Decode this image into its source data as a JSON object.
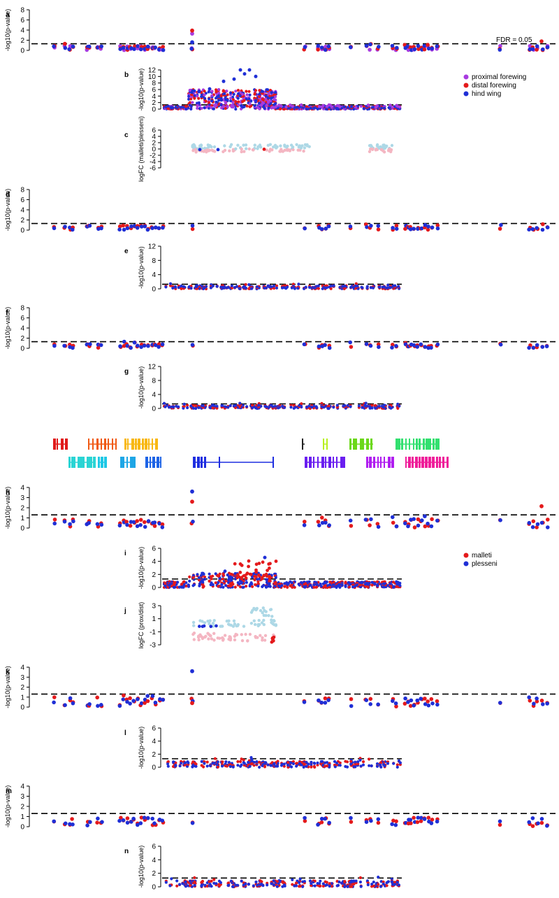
{
  "figure": {
    "type": "manhattan-multi-panel"
  },
  "colors": {
    "proximal_forewing": "#a83be0",
    "distal_forewing": "#e41a1c",
    "hind_wing": "#1f2fd6",
    "malleti": "#e41a1c",
    "plesseni": "#1f2fd6",
    "logfc_positive": "#add8e6",
    "logfc_negative": "#f4b6c2",
    "threshold": "#000000"
  },
  "legends": {
    "wing_regions": {
      "items": [
        {
          "label": "proximal forewing",
          "color": "#a83be0"
        },
        {
          "label": "distal forewing",
          "color": "#e41a1c"
        },
        {
          "label": "hind wing",
          "color": "#1f2fd6"
        }
      ]
    },
    "species": {
      "items": [
        {
          "label": "malleti",
          "color": "#e41a1c"
        },
        {
          "label": "plesseni",
          "color": "#1f2fd6"
        }
      ]
    }
  },
  "annotations": {
    "fdr_label": "FDR = 0.05"
  },
  "chart_data": [
    {
      "panel": "a",
      "type": "scatter",
      "ylabel": "-log10(p-value)",
      "yticks": [
        0,
        2,
        4,
        6,
        8
      ],
      "ylim": [
        0,
        8
      ],
      "threshold": 1.3,
      "extent": "full",
      "series": [
        "proximal_forewing",
        "distal_forewing",
        "hind_wing"
      ],
      "peak": {
        "x": 0.263,
        "values": [
          3.3,
          3.9,
          1.6
        ]
      }
    },
    {
      "panel": "b",
      "type": "scatter",
      "ylabel": "-log10(p-value)",
      "yticks": [
        0,
        2,
        4,
        6,
        8,
        10,
        12
      ],
      "ylim": [
        0,
        12
      ],
      "threshold": 1.3,
      "extent": "region",
      "series": [
        "proximal_forewing",
        "distal_forewing",
        "hind_wing"
      ],
      "max_value": 12.2
    },
    {
      "panel": "c",
      "type": "scatter",
      "ylabel": "logFC (malleti/plesseni)",
      "yticks": [
        -6,
        -4,
        -2,
        0,
        2,
        4,
        6
      ],
      "ylim": [
        -6,
        6
      ],
      "extent": "region"
    },
    {
      "panel": "d",
      "type": "scatter",
      "ylabel": "-log10(p-value)",
      "yticks": [
        0,
        2,
        4,
        6,
        8
      ],
      "ylim": [
        0,
        8
      ],
      "threshold": 1.3,
      "extent": "full"
    },
    {
      "panel": "e",
      "type": "scatter",
      "ylabel": "-log10(p-value)",
      "yticks": [
        0,
        4,
        8,
        12
      ],
      "ylim": [
        0,
        12
      ],
      "threshold": 1.3,
      "extent": "region"
    },
    {
      "panel": "f",
      "type": "scatter",
      "ylabel": "-log10(p-value)",
      "yticks": [
        0,
        2,
        4,
        6,
        8
      ],
      "ylim": [
        0,
        8
      ],
      "threshold": 1.3,
      "extent": "full"
    },
    {
      "panel": "g",
      "type": "scatter",
      "ylabel": "-log10(p-value)",
      "yticks": [
        0,
        4,
        8,
        12
      ],
      "ylim": [
        0,
        12
      ],
      "threshold": 1.3,
      "extent": "region"
    },
    {
      "panel": "h",
      "type": "scatter",
      "ylabel": "-log10(p-value)",
      "yticks": [
        0,
        1,
        2,
        3,
        4
      ],
      "ylim": [
        0,
        4
      ],
      "threshold": 1.3,
      "extent": "full",
      "series": [
        "malleti",
        "plesseni"
      ],
      "peak": {
        "x": 0.263,
        "values": [
          2.6,
          3.6
        ]
      }
    },
    {
      "panel": "i",
      "type": "scatter",
      "ylabel": "-log10(p-value)",
      "yticks": [
        0,
        2,
        4,
        6
      ],
      "ylim": [
        0,
        6
      ],
      "threshold": 1.3,
      "extent": "region",
      "series": [
        "malleti",
        "plesseni"
      ],
      "max_value": 4.6
    },
    {
      "panel": "j",
      "type": "scatter",
      "ylabel": "logFC (prox/dist)",
      "yticks": [
        -3,
        -1,
        1,
        3
      ],
      "ylim": [
        -3,
        3
      ],
      "extent": "region"
    },
    {
      "panel": "k",
      "type": "scatter",
      "ylabel": "-log10(p-value)",
      "yticks": [
        0,
        1,
        2,
        3,
        4
      ],
      "ylim": [
        0,
        4
      ],
      "threshold": 1.3,
      "extent": "full",
      "series": [
        "malleti",
        "plesseni"
      ],
      "peak": {
        "x": 0.263,
        "values": [
          0.4,
          3.6
        ]
      }
    },
    {
      "panel": "l",
      "type": "scatter",
      "ylabel": "-log10(p-value)",
      "yticks": [
        0,
        2,
        4,
        6
      ],
      "ylim": [
        0,
        6
      ],
      "threshold": 1.3,
      "extent": "region"
    },
    {
      "panel": "m",
      "type": "scatter",
      "ylabel": "-log10(p-value)",
      "yticks": [
        0,
        1,
        2,
        3,
        4
      ],
      "ylim": [
        0,
        4
      ],
      "threshold": 1.3,
      "extent": "full"
    },
    {
      "panel": "n",
      "type": "scatter",
      "ylabel": "-log10(p-value)",
      "yticks": [
        0,
        2,
        4,
        6
      ],
      "ylim": [
        0,
        6
      ],
      "threshold": 1.3,
      "extent": "region"
    }
  ]
}
